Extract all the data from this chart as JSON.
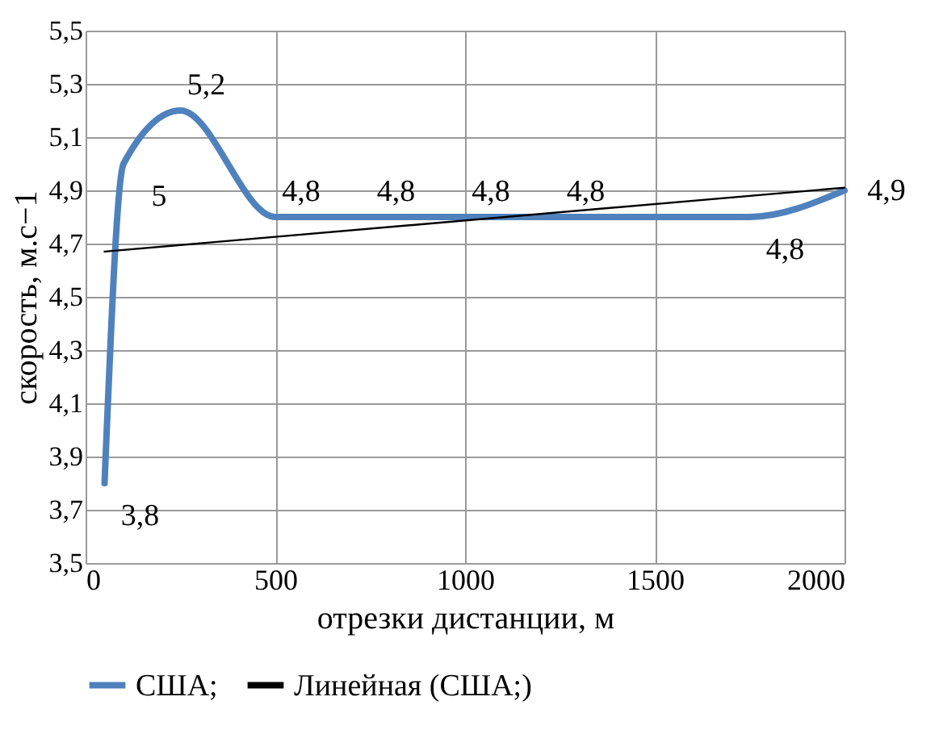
{
  "chart_data": {
    "type": "line",
    "xlabel": "отрезки дистанции, м",
    "ylabel": "скорость, м.с−1",
    "x": [
      50,
      100,
      250,
      500,
      750,
      1000,
      1250,
      1750,
      2000
    ],
    "series": [
      {
        "name": "США;",
        "color": "#4f81bd",
        "values": [
          3.8,
          5.0,
          5.2,
          4.8,
          4.8,
          4.8,
          4.8,
          4.8,
          4.9
        ],
        "value_labels": [
          "3,8",
          "5",
          "5,2",
          "4,8",
          "4,8",
          "4,8",
          "4,8",
          "4,8",
          "4,9"
        ]
      },
      {
        "name": "Линейная (США;)",
        "type": "line",
        "color": "#000000",
        "x": [
          50,
          2000
        ],
        "values": [
          4.67,
          4.91
        ]
      }
    ],
    "xlim": [
      0,
      2000
    ],
    "xticks": [
      0,
      500,
      1000,
      1500,
      2000
    ],
    "ylim": [
      3.5,
      5.5
    ],
    "yticks": [
      {
        "value": 3.5,
        "label": "3,5"
      },
      {
        "value": 3.7,
        "label": "3,7"
      },
      {
        "value": 3.9,
        "label": "3,9"
      },
      {
        "value": 4.1,
        "label": "4,1"
      },
      {
        "value": 4.3,
        "label": "4,3"
      },
      {
        "value": 4.5,
        "label": "4,5"
      },
      {
        "value": 4.7,
        "label": "4,7"
      },
      {
        "value": 4.9,
        "label": "4,9"
      },
      {
        "value": 5.1,
        "label": "5,1"
      },
      {
        "value": 5.3,
        "label": "5,3"
      },
      {
        "value": 5.5,
        "label": "5,5"
      }
    ],
    "grid": true,
    "legend": "bottom",
    "marker": "none",
    "line_style": "solid"
  }
}
